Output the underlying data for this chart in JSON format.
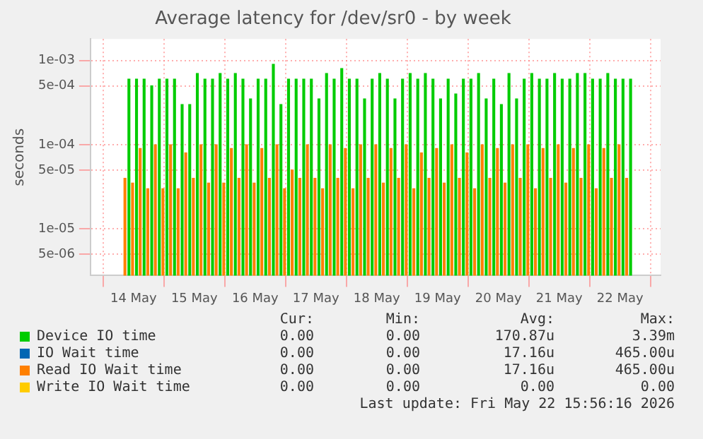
{
  "chart_data": {
    "type": "bar",
    "title": "Average latency for /dev/sr0 - by week",
    "ylabel": "seconds",
    "log": "y",
    "grid": true,
    "legend": "bottom",
    "xlim": [
      "2026-05-13T19:30",
      "2026-05-22T03:30"
    ],
    "xticks": [
      {
        "value": "2026-05-14",
        "label": "14 May"
      },
      {
        "value": "2026-05-15",
        "label": "15 May"
      },
      {
        "value": "2026-05-16",
        "label": "16 May"
      },
      {
        "value": "2026-05-17",
        "label": "17 May"
      },
      {
        "value": "2026-05-18",
        "label": "18 May"
      },
      {
        "value": "2026-05-19",
        "label": "19 May"
      },
      {
        "value": "2026-05-20",
        "label": "20 May"
      },
      {
        "value": "2026-05-21",
        "label": "21 May"
      },
      {
        "value": "2026-05-22",
        "label": "22 May"
      }
    ],
    "ylim": [
      2.8e-06,
      0.0018
    ],
    "yticks": [
      {
        "value": 0.001,
        "label": "1e-03"
      },
      {
        "value": 0.0005,
        "label": "5e-04"
      },
      {
        "value": 0.0001,
        "label": "1e-04"
      },
      {
        "value": 5e-05,
        "label": "5e-05"
      },
      {
        "value": 1e-05,
        "label": "1e-05"
      },
      {
        "value": 5e-06,
        "label": "5e-06"
      }
    ],
    "x": [
      "2026-05-13T21:00",
      "2026-05-14T00:00",
      "2026-05-14T03:00",
      "2026-05-14T06:00",
      "2026-05-14T09:00",
      "2026-05-14T12:00",
      "2026-05-14T15:00",
      "2026-05-14T18:00",
      "2026-05-14T21:00",
      "2026-05-15T00:00",
      "2026-05-15T03:00",
      "2026-05-15T06:00",
      "2026-05-15T09:00",
      "2026-05-15T12:00",
      "2026-05-15T15:00",
      "2026-05-15T18:00",
      "2026-05-15T21:00",
      "2026-05-16T00:00",
      "2026-05-16T03:00",
      "2026-05-16T06:00",
      "2026-05-16T09:00",
      "2026-05-16T12:00",
      "2026-05-16T15:00",
      "2026-05-16T18:00",
      "2026-05-16T21:00",
      "2026-05-17T00:00",
      "2026-05-17T03:00",
      "2026-05-17T06:00",
      "2026-05-17T09:00",
      "2026-05-17T12:00",
      "2026-05-17T15:00",
      "2026-05-17T18:00",
      "2026-05-17T21:00",
      "2026-05-18T00:00",
      "2026-05-18T03:00",
      "2026-05-18T06:00",
      "2026-05-18T09:00",
      "2026-05-18T12:00",
      "2026-05-18T15:00",
      "2026-05-18T18:00",
      "2026-05-18T21:00",
      "2026-05-19T00:00",
      "2026-05-19T03:00",
      "2026-05-19T06:00",
      "2026-05-19T09:00",
      "2026-05-19T12:00",
      "2026-05-19T15:00",
      "2026-05-19T18:00",
      "2026-05-19T21:00",
      "2026-05-20T00:00",
      "2026-05-20T03:00",
      "2026-05-20T06:00",
      "2026-05-20T09:00",
      "2026-05-20T12:00",
      "2026-05-20T15:00",
      "2026-05-20T18:00",
      "2026-05-20T21:00",
      "2026-05-21T00:00",
      "2026-05-21T03:00",
      "2026-05-21T06:00",
      "2026-05-21T09:00",
      "2026-05-21T12:00",
      "2026-05-21T15:00",
      "2026-05-21T18:00",
      "2026-05-21T21:00",
      "2026-05-22T00:00",
      "2026-05-22T03:00"
    ],
    "series": [
      {
        "name": "Device IO time",
        "color": "#00cc00",
        "values": [
          0.0006,
          0.0006,
          0.0006,
          0.0005,
          0.0006,
          0.0006,
          0.0006,
          0.0003,
          0.0003,
          0.0007,
          0.0006,
          0.0006,
          0.0007,
          0.0006,
          0.0007,
          0.0006,
          0.00035,
          0.0006,
          0.0006,
          0.0009,
          0.0003,
          0.0006,
          0.0006,
          0.0006,
          0.0006,
          0.00035,
          0.0007,
          0.0006,
          0.0008,
          0.0006,
          0.0006,
          0.00035,
          0.0006,
          0.0007,
          0.0006,
          0.00035,
          0.0006,
          0.0007,
          0.0006,
          0.0007,
          0.0006,
          0.00035,
          0.0006,
          0.0004,
          0.0006,
          0.0006,
          0.0007,
          0.00035,
          0.0006,
          0.0003,
          0.0007,
          0.00035,
          0.0006,
          0.0007,
          0.0006,
          0.0006,
          0.0007,
          0.0006,
          0.0006,
          0.0007,
          0.0007,
          0.0006,
          0.0006,
          0.0007,
          0.0006,
          0.0006,
          0.0006
        ]
      },
      {
        "name": "IO Wait time",
        "color": "#0066b3",
        "values": [
          null,
          null,
          null,
          null,
          null,
          null,
          null,
          null,
          null,
          null,
          null,
          null,
          null,
          null,
          null,
          null,
          null,
          null,
          null,
          null,
          null,
          null,
          null,
          null,
          null,
          null,
          null,
          null,
          null,
          null,
          null,
          null,
          null,
          null,
          null,
          null,
          null,
          null,
          null,
          null,
          null,
          null,
          null,
          null,
          null,
          null,
          null,
          null,
          null,
          null,
          null,
          null,
          null,
          null,
          null,
          null,
          null,
          null,
          null,
          null,
          null,
          null,
          null,
          null,
          null,
          null,
          null
        ]
      },
      {
        "name": "Read IO Wait time",
        "color": "#ff8000",
        "values": [
          4e-05,
          3.5e-05,
          9e-05,
          3e-05,
          0.0001,
          3e-05,
          0.0001,
          3e-05,
          8e-05,
          4e-05,
          0.0001,
          3.5e-05,
          0.0001,
          3.5e-05,
          9e-05,
          4e-05,
          0.0001,
          3.5e-05,
          9e-05,
          4e-05,
          0.0001,
          3e-05,
          5e-05,
          4e-05,
          0.0001,
          4e-05,
          3e-05,
          0.0001,
          4e-05,
          9e-05,
          3e-05,
          0.0001,
          4e-05,
          0.0001,
          3.5e-05,
          9e-05,
          4e-05,
          0.0001,
          3e-05,
          8e-05,
          4e-05,
          9e-05,
          3.5e-05,
          0.0001,
          4e-05,
          8e-05,
          3e-05,
          0.0001,
          4e-05,
          9e-05,
          3.5e-05,
          0.0001,
          4e-05,
          0.0001,
          3e-05,
          9e-05,
          4e-05,
          0.0001,
          3.5e-05,
          9e-05,
          4e-05,
          0.0001,
          3e-05,
          9e-05,
          4e-05,
          0.0001,
          4e-05
        ]
      },
      {
        "name": "Write IO Wait time",
        "color": "#ffcc00",
        "values": [
          null,
          null,
          null,
          null,
          null,
          null,
          null,
          null,
          null,
          null,
          null,
          null,
          null,
          null,
          null,
          null,
          null,
          null,
          null,
          null,
          null,
          null,
          null,
          null,
          null,
          null,
          null,
          null,
          null,
          null,
          null,
          null,
          null,
          null,
          null,
          null,
          null,
          null,
          null,
          null,
          null,
          null,
          null,
          null,
          null,
          null,
          null,
          null,
          null,
          null,
          null,
          null,
          null,
          null,
          null,
          null,
          null,
          null,
          null,
          null,
          null,
          null,
          null,
          null,
          null,
          null,
          null
        ]
      }
    ],
    "annotations": [
      "Cur:",
      "Min:",
      "Avg:",
      "Max:",
      "0.00",
      "0.00",
      "170.87u",
      "3.39m",
      "0.00",
      "0.00",
      "17.16u",
      "465.00u",
      "0.00",
      "0.00",
      "17.16u",
      "465.00u",
      "0.00",
      "0.00",
      "0.00",
      "0.00",
      "Last update: Fri May 22 15:56:16 2026"
    ]
  }
}
